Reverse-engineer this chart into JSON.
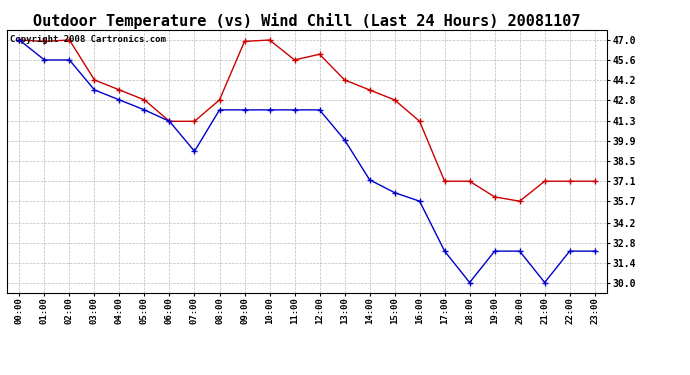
{
  "title": "Outdoor Temperature (vs) Wind Chill (Last 24 Hours) 20081107",
  "copyright": "Copyright 2008 Cartronics.com",
  "x_labels": [
    "00:00",
    "01:00",
    "02:00",
    "03:00",
    "04:00",
    "05:00",
    "06:00",
    "07:00",
    "08:00",
    "09:00",
    "10:00",
    "11:00",
    "12:00",
    "13:00",
    "14:00",
    "15:00",
    "16:00",
    "17:00",
    "18:00",
    "19:00",
    "20:00",
    "21:00",
    "22:00",
    "23:00"
  ],
  "temp_data": [
    47.0,
    46.9,
    47.0,
    44.2,
    43.5,
    42.8,
    41.3,
    41.3,
    42.8,
    46.9,
    47.0,
    45.6,
    46.0,
    44.2,
    43.5,
    42.8,
    41.3,
    37.1,
    37.1,
    36.0,
    35.7,
    37.1,
    37.1,
    37.1
  ],
  "windchill_data": [
    47.0,
    45.6,
    45.6,
    43.5,
    42.8,
    42.1,
    41.3,
    39.2,
    42.1,
    42.1,
    42.1,
    42.1,
    42.1,
    40.0,
    37.2,
    36.3,
    35.7,
    32.2,
    30.0,
    32.2,
    32.2,
    30.0,
    32.2,
    32.2
  ],
  "ylim_min": 29.3,
  "ylim_max": 47.7,
  "yticks": [
    30.0,
    31.4,
    32.8,
    34.2,
    35.7,
    37.1,
    38.5,
    39.9,
    41.3,
    42.8,
    44.2,
    45.6,
    47.0
  ],
  "temp_color": "#cc0000",
  "windchill_color": "#0000cc",
  "bg_color": "#ffffff",
  "grid_color": "#bbbbbb",
  "title_fontsize": 11,
  "copyright_fontsize": 6.5
}
